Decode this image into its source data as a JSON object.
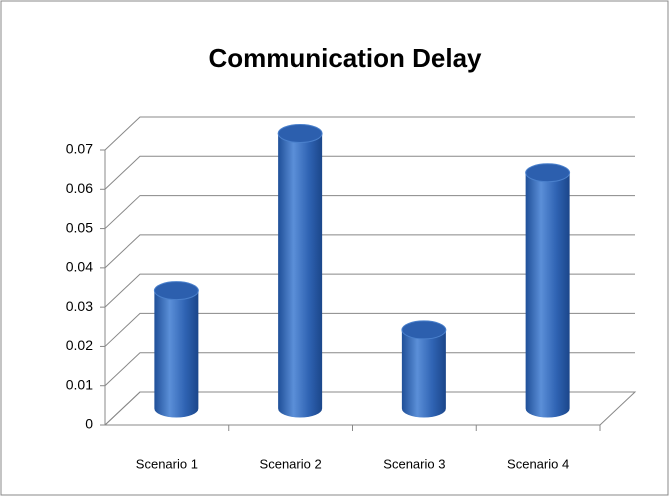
{
  "chart_data": {
    "type": "bar",
    "title": "Communication Delay",
    "categories": [
      "Scenario 1",
      "Scenario 2",
      "Scenario 3",
      "Scenario 4"
    ],
    "values": [
      0.03,
      0.07,
      0.02,
      0.06
    ],
    "color": "#3a6fc0",
    "ylim": [
      0,
      0.07
    ],
    "yticks": [
      0,
      0.01,
      0.02,
      0.03,
      0.04,
      0.05,
      0.06,
      0.07
    ],
    "grid": true
  }
}
